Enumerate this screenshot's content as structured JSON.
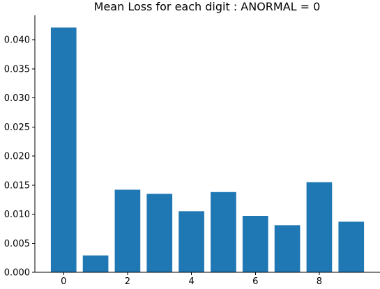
{
  "chart_data": {
    "type": "bar",
    "title": "Mean Loss for each digit : ANORMAL = 0",
    "xlabel": "",
    "ylabel": "",
    "categories": [
      0,
      1,
      2,
      3,
      4,
      5,
      6,
      7,
      8,
      9
    ],
    "values": [
      0.0421,
      0.0029,
      0.0142,
      0.0135,
      0.0105,
      0.0138,
      0.0097,
      0.0081,
      0.0155,
      0.0087
    ],
    "bar_color": "#1f77b4",
    "xlim": [
      -0.9,
      9.9
    ],
    "ylim": [
      0,
      0.0442
    ],
    "x_ticks": [
      0,
      2,
      4,
      6,
      8
    ],
    "x_tick_labels": [
      "0",
      "2",
      "4",
      "6",
      "8"
    ],
    "y_ticks": [
      0,
      0.005,
      0.01,
      0.015,
      0.02,
      0.025,
      0.03,
      0.035,
      0.04
    ],
    "y_tick_labels": [
      "0.000",
      "0.005",
      "0.010",
      "0.015",
      "0.020",
      "0.025",
      "0.030",
      "0.035",
      "0.040"
    ],
    "grid": false,
    "legend": "none"
  }
}
